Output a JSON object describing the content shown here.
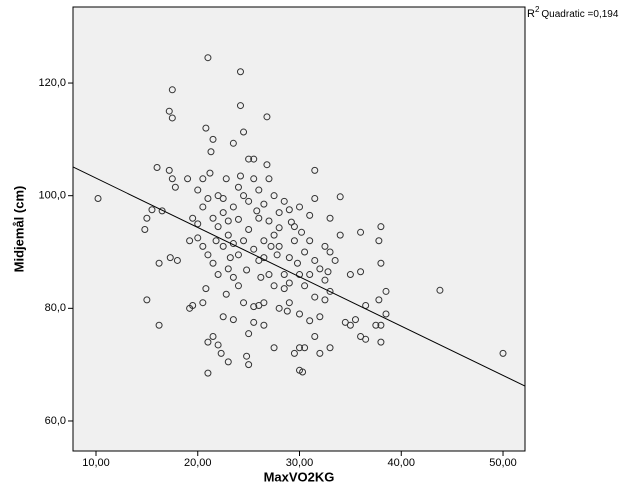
{
  "chart_data": {
    "type": "scatter",
    "x_label": "MaxVO2KG",
    "y_label": "Midjemål (cm)",
    "annotation": {
      "prefix": "R",
      "sup": "2",
      "text": "Quadratic =0,194"
    },
    "xlim": [
      7.74,
      52.16
    ],
    "ylim": [
      54.67,
      133.5
    ],
    "xticks": [
      {
        "value": 10,
        "label": "10,00"
      },
      {
        "value": 20,
        "label": "20,00"
      },
      {
        "value": 30,
        "label": "30,00"
      },
      {
        "value": 40,
        "label": "40,00"
      },
      {
        "value": 50,
        "label": "50,00"
      }
    ],
    "yticks": [
      {
        "value": 60,
        "label": "60,0"
      },
      {
        "value": 80,
        "label": "80,0"
      },
      {
        "value": 100,
        "label": "100,0"
      },
      {
        "value": 120,
        "label": "120,0"
      }
    ],
    "background": "#f0f0f0",
    "marker_color": "#333333",
    "line_color": "#000000",
    "x": [
      10.2,
      21,
      24.2,
      17.5,
      17.2,
      24.2,
      26.8,
      17.5,
      20.8,
      24.5,
      21.5,
      23.5,
      21.3,
      16,
      17.2,
      31.5,
      14.8,
      15,
      15.5,
      16.5,
      16.2,
      15,
      16.2,
      17.3,
      18,
      17.8,
      17.5,
      19,
      19.2,
      19.2,
      19.5,
      20.5,
      20.8,
      21,
      21,
      21.5,
      22,
      22.3,
      22.5,
      23,
      24.8,
      25,
      25,
      25.5,
      26.5,
      27.5,
      29.5,
      30,
      30.3,
      30,
      30.5,
      31.5,
      32,
      33,
      34.5,
      35,
      35.5,
      36,
      36.5,
      37.5,
      38,
      38,
      38.5,
      38.5,
      37.8,
      36.5,
      36,
      36,
      37.8,
      38,
      38,
      43.8,
      50,
      34,
      35,
      33,
      32,
      31,
      32.5,
      33,
      31.5,
      32.5,
      32,
      30,
      29,
      28,
      27.5,
      26.5,
      26,
      25.5,
      24.5,
      24,
      23.5,
      23,
      22,
      21.5,
      21,
      20.5,
      20,
      20,
      19.5,
      20.5,
      21,
      20,
      20.5,
      21.2,
      22,
      22.5,
      23,
      23.5,
      24,
      24.5,
      25,
      25.5,
      26,
      26.5,
      27,
      27.5,
      28,
      28.5,
      29,
      29.5,
      30,
      31,
      31.5,
      31,
      30.5,
      29.5,
      29,
      28.5,
      28,
      27.5,
      27,
      26.5,
      26,
      25.5,
      25,
      24.5,
      24,
      23.5,
      23,
      22.5,
      22,
      25,
      25.5,
      24.2,
      26,
      27,
      28.5,
      29,
      30,
      30.5,
      33.5,
      34,
      33,
      32.5,
      22.8,
      23.5,
      21.5,
      26.5,
      27.8,
      29.8,
      31.5,
      32.8,
      24,
      28,
      29.2,
      30.2,
      26.2,
      24.8,
      23.2,
      21.8,
      22.8,
      26.8,
      22.5,
      25.8,
      27.2,
      28.8,
      31
    ],
    "values": [
      99.5,
      124.5,
      122,
      118.8,
      115,
      116,
      114,
      113.8,
      112,
      111.3,
      110,
      109.3,
      107.8,
      105,
      104.5,
      104.5,
      94,
      96,
      97.5,
      97.3,
      88,
      81.5,
      77,
      89,
      88.5,
      101.5,
      103,
      103,
      92,
      80,
      80.5,
      81,
      83.5,
      68.5,
      74,
      75,
      73.5,
      72,
      78.5,
      70.5,
      71.5,
      70,
      75.5,
      77.5,
      77,
      73,
      72,
      69,
      68.7,
      73,
      73,
      75,
      72,
      73,
      77.5,
      77,
      78,
      75,
      74.5,
      77,
      74,
      77,
      79,
      83,
      81.5,
      80.5,
      93.5,
      86.5,
      92,
      88,
      94.5,
      83.2,
      72,
      99.8,
      86,
      90,
      87,
      86,
      85,
      83,
      82,
      81.5,
      78.5,
      79,
      81,
      80,
      84,
      81,
      80.5,
      80.3,
      81,
      84,
      85.5,
      87,
      86,
      88,
      89.5,
      91,
      92.5,
      95,
      96,
      98,
      99.5,
      101,
      103,
      104,
      100,
      97,
      95.5,
      98,
      101.5,
      100,
      99,
      103,
      101,
      98.5,
      103,
      100,
      97,
      99,
      97.5,
      94.5,
      98,
      96.5,
      99.5,
      92,
      90,
      92,
      89,
      86,
      91,
      93,
      95.5,
      92,
      88.5,
      90.5,
      94,
      92,
      89.5,
      91.5,
      93,
      91,
      94.5,
      106.5,
      106.5,
      103.5,
      96,
      86,
      83.5,
      84.5,
      86,
      84,
      88.5,
      93,
      96,
      91,
      82.5,
      78,
      96,
      89,
      89.5,
      88,
      88.5,
      86.5,
      95.8,
      94.3,
      95.3,
      93.5,
      85.5,
      86.8,
      89,
      92,
      103,
      105.5,
      99.5,
      97.3,
      91,
      79.5,
      77.8
    ],
    "fit": {
      "x": [
        7.74,
        30,
        52.16
      ],
      "y": [
        105.1,
        85.6,
        66.2
      ]
    }
  }
}
